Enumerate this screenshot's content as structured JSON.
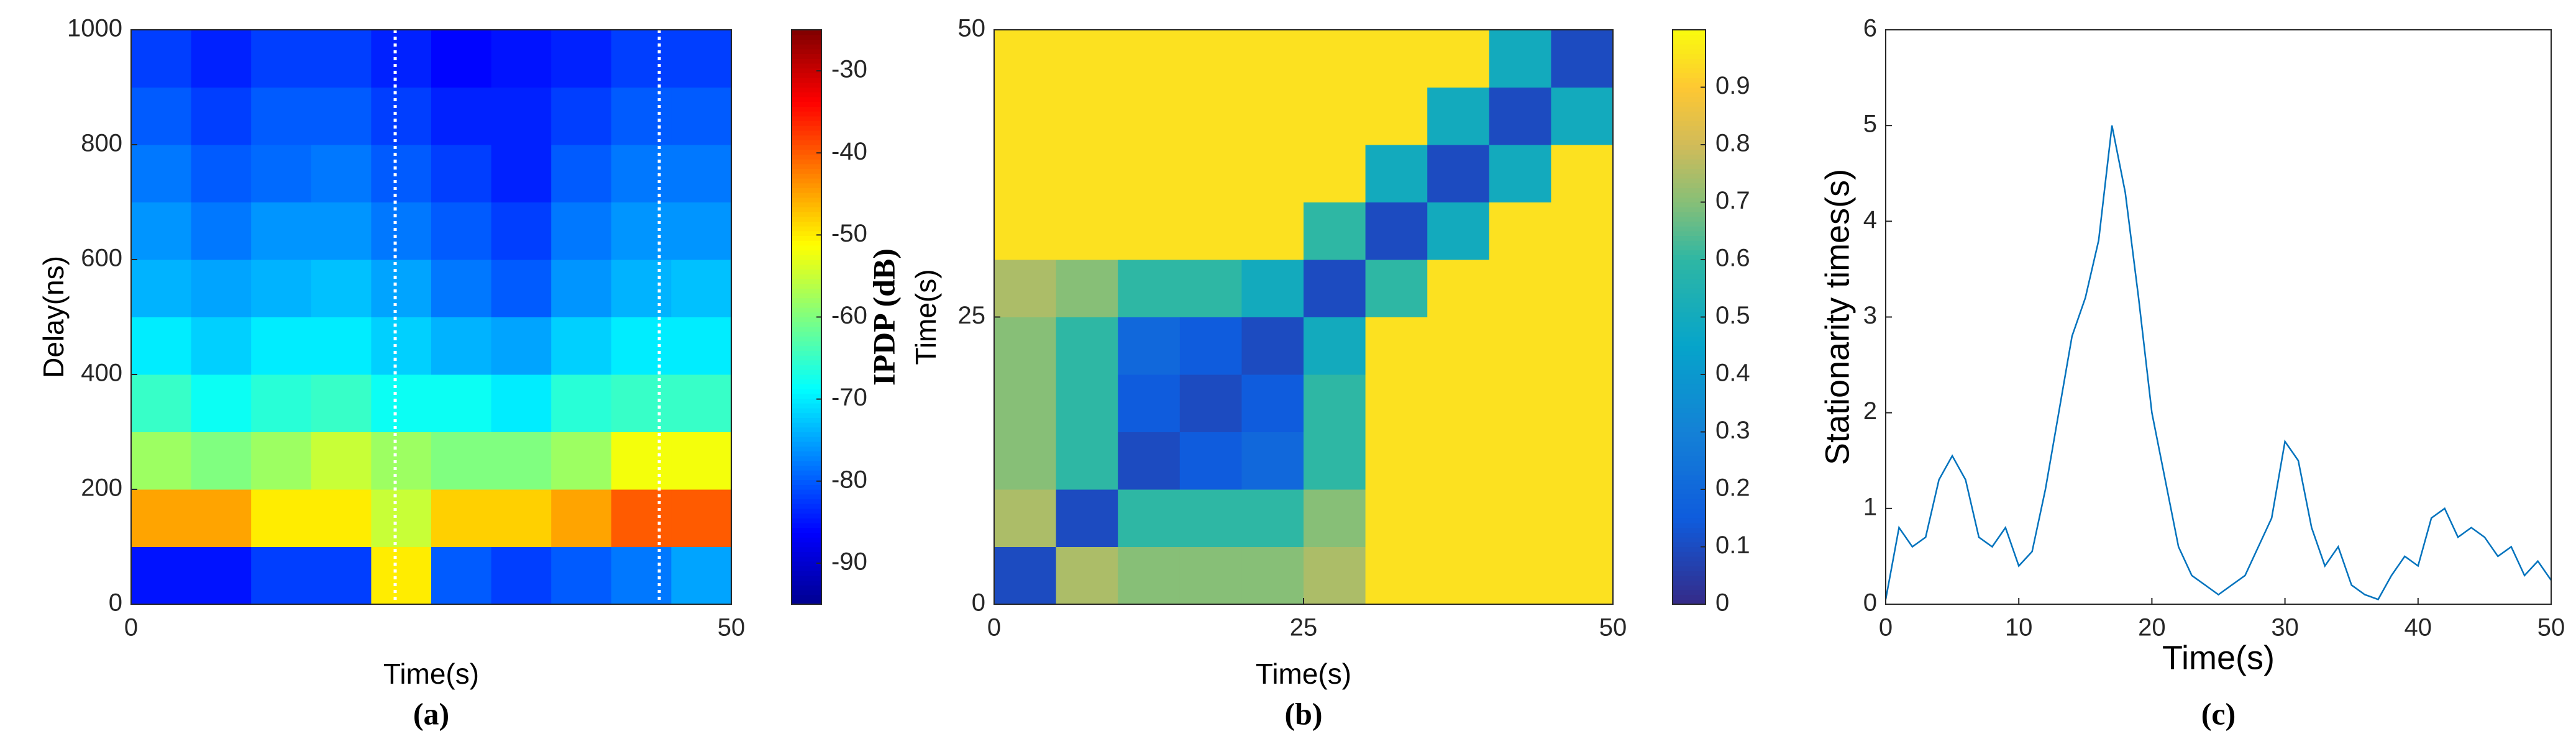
{
  "chart_data": [
    {
      "type": "heatmap",
      "colormap": "jet",
      "xlabel": "Time(s)",
      "ylabel": "Delay(ns)",
      "caption": "(a)",
      "colorbar_label": "IPDP (dB)",
      "xlim": [
        0,
        50
      ],
      "xticks": [
        0,
        50
      ],
      "ylim": [
        0,
        1000
      ],
      "yticks": [
        0,
        200,
        400,
        600,
        800,
        1000
      ],
      "clim": [
        -95,
        -25
      ],
      "cticks": [
        -90,
        -80,
        -70,
        -60,
        -50,
        -40,
        -30
      ],
      "vlines": [
        22,
        44
      ],
      "x": [
        2.5,
        7.5,
        12.5,
        17.5,
        22.5,
        27.5,
        32.5,
        37.5,
        42.5,
        47.5
      ],
      "y": [
        50,
        150,
        250,
        350,
        450,
        550,
        650,
        750,
        850,
        950
      ],
      "z": [
        [
          -85,
          -85,
          -82,
          -82,
          -50,
          -80,
          -82,
          -80,
          -78,
          -75
        ],
        [
          -45,
          -45,
          -50,
          -50,
          -55,
          -48,
          -48,
          -45,
          -40,
          -40
        ],
        [
          -58,
          -60,
          -58,
          -55,
          -58,
          -60,
          -60,
          -58,
          -52,
          -52
        ],
        [
          -65,
          -68,
          -66,
          -65,
          -68,
          -68,
          -70,
          -66,
          -65,
          -65
        ],
        [
          -70,
          -72,
          -70,
          -70,
          -72,
          -74,
          -75,
          -72,
          -70,
          -70
        ],
        [
          -74,
          -75,
          -74,
          -73,
          -75,
          -78,
          -80,
          -76,
          -74,
          -73
        ],
        [
          -76,
          -78,
          -76,
          -76,
          -78,
          -80,
          -82,
          -78,
          -76,
          -76
        ],
        [
          -78,
          -80,
          -79,
          -78,
          -80,
          -82,
          -84,
          -80,
          -78,
          -78
        ],
        [
          -80,
          -82,
          -80,
          -80,
          -82,
          -84,
          -84,
          -82,
          -80,
          -80
        ],
        [
          -82,
          -84,
          -82,
          -82,
          -84,
          -86,
          -85,
          -84,
          -82,
          -82
        ]
      ]
    },
    {
      "type": "heatmap",
      "colormap": "parula",
      "xlabel": "Time(s)",
      "ylabel": "Time(s)",
      "caption": "(b)",
      "xlim": [
        0,
        50
      ],
      "xticks": [
        0,
        25,
        50
      ],
      "ylim": [
        0,
        50
      ],
      "yticks": [
        0,
        25,
        50
      ],
      "clim": [
        0,
        1
      ],
      "cticks": [
        0,
        0.1,
        0.2,
        0.3,
        0.4,
        0.5,
        0.6,
        0.7,
        0.8,
        0.9
      ],
      "x": [
        2.5,
        7.5,
        12.5,
        17.5,
        22.5,
        27.5,
        32.5,
        37.5,
        42.5,
        47.5
      ],
      "y": [
        2.5,
        7.5,
        12.5,
        17.5,
        22.5,
        27.5,
        32.5,
        37.5,
        42.5,
        47.5
      ],
      "z": [
        [
          0.1,
          0.75,
          0.7,
          0.7,
          0.7,
          0.75,
          0.95,
          0.95,
          0.95,
          0.95
        ],
        [
          0.75,
          0.1,
          0.6,
          0.6,
          0.6,
          0.7,
          0.95,
          0.95,
          0.95,
          0.95
        ],
        [
          0.7,
          0.6,
          0.1,
          0.15,
          0.2,
          0.6,
          0.95,
          0.95,
          0.95,
          0.95
        ],
        [
          0.7,
          0.6,
          0.15,
          0.1,
          0.15,
          0.6,
          0.95,
          0.95,
          0.95,
          0.95
        ],
        [
          0.7,
          0.6,
          0.2,
          0.15,
          0.1,
          0.5,
          0.95,
          0.95,
          0.95,
          0.95
        ],
        [
          0.75,
          0.7,
          0.6,
          0.6,
          0.5,
          0.1,
          0.6,
          0.95,
          0.95,
          0.95
        ],
        [
          0.95,
          0.95,
          0.95,
          0.95,
          0.95,
          0.6,
          0.1,
          0.5,
          0.95,
          0.95
        ],
        [
          0.95,
          0.95,
          0.95,
          0.95,
          0.95,
          0.95,
          0.5,
          0.1,
          0.5,
          0.95
        ],
        [
          0.95,
          0.95,
          0.95,
          0.95,
          0.95,
          0.95,
          0.95,
          0.5,
          0.1,
          0.5
        ],
        [
          0.95,
          0.95,
          0.95,
          0.95,
          0.95,
          0.95,
          0.95,
          0.95,
          0.5,
          0.1
        ]
      ]
    },
    {
      "type": "line",
      "color": "#0072bd",
      "xlabel": "Time(s)",
      "ylabel": "Stationarity times(s)",
      "caption": "(c)",
      "xlim": [
        0,
        50
      ],
      "xticks": [
        0,
        10,
        20,
        30,
        40,
        50
      ],
      "ylim": [
        0,
        6
      ],
      "yticks": [
        0,
        1,
        2,
        3,
        4,
        5,
        6
      ],
      "x": [
        0,
        1,
        2,
        3,
        4,
        5,
        6,
        7,
        8,
        9,
        10,
        11,
        12,
        13,
        14,
        15,
        16,
        17,
        18,
        19,
        20,
        21,
        22,
        23,
        24,
        25,
        26,
        27,
        28,
        29,
        30,
        31,
        32,
        33,
        34,
        35,
        36,
        37,
        38,
        39,
        40,
        41,
        42,
        43,
        44,
        45,
        46,
        47,
        48,
        49,
        50
      ],
      "values": [
        0.05,
        0.8,
        0.6,
        0.7,
        1.3,
        1.55,
        1.3,
        0.7,
        0.6,
        0.8,
        0.4,
        0.55,
        1.2,
        2.0,
        2.8,
        3.2,
        3.8,
        5.0,
        4.3,
        3.2,
        2.0,
        1.3,
        0.6,
        0.3,
        0.2,
        0.1,
        0.2,
        0.3,
        0.6,
        0.9,
        1.7,
        1.5,
        0.8,
        0.4,
        0.6,
        0.2,
        0.1,
        0.05,
        0.3,
        0.5,
        0.4,
        0.9,
        1.0,
        0.7,
        0.8,
        0.7,
        0.5,
        0.6,
        0.3,
        0.45,
        0.25
      ]
    }
  ]
}
